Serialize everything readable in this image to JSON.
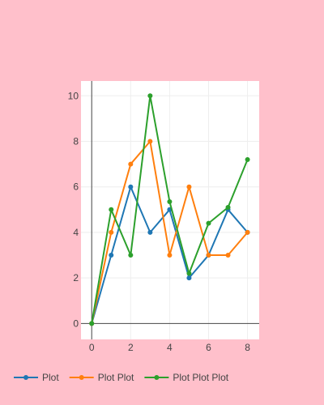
{
  "colors": {
    "page_background": "#ffc0cb",
    "plot_background": "#ffffff",
    "gridline": "#eeeeee",
    "zeroline": "#444444"
  },
  "chart_data": {
    "type": "line",
    "mode": "lines+markers",
    "title": "",
    "xlabel": "",
    "ylabel": "",
    "xlim": [
      -0.55,
      8.6
    ],
    "ylim": [
      -0.7,
      10.65
    ],
    "x_ticks": [
      0,
      2,
      4,
      6,
      8
    ],
    "y_ticks": [
      0,
      2,
      4,
      6,
      8,
      10
    ],
    "grid": true,
    "legend_placement": "bottom-left, horizontal",
    "x": [
      0,
      1,
      2,
      3,
      4,
      5,
      6,
      7,
      8
    ],
    "series": [
      {
        "name": "Plot",
        "color": "#1f77b4",
        "values": [
          0,
          3,
          6,
          4,
          5,
          2,
          3,
          5,
          4
        ]
      },
      {
        "name": "Plot Plot",
        "color": "#ff7f0e",
        "values": [
          0,
          4,
          7,
          8,
          3,
          6,
          3,
          3,
          4
        ]
      },
      {
        "name": "Plot Plot Plot",
        "color": "#2ca02c",
        "values": [
          0,
          5,
          3,
          10,
          5.35,
          2.2,
          4.4,
          5.1,
          7.2
        ]
      }
    ]
  }
}
